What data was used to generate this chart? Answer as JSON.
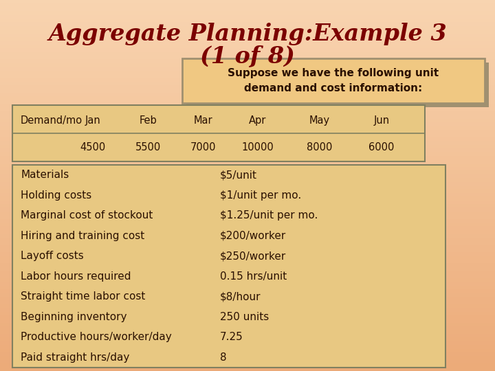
{
  "title_line1": "Aggregate Planning:Example 3",
  "title_line2": "(1 of 8)",
  "title_color": "#7B0000",
  "bg_color_top": "#F5C8A0",
  "bg_color": "#F0BC90",
  "callout_text": "Suppose we have the following unit\ndemand and cost information:",
  "callout_bg": "#F0C882",
  "callout_border": "#A09070",
  "callout_shadow": "#A09070",
  "table1_headers": [
    "Demand/mo",
    "Jan",
    "Feb",
    "Mar",
    "Apr",
    "May",
    "Jun"
  ],
  "table1_values": [
    "",
    "4500",
    "5500",
    "7000",
    "10000",
    "8000",
    "6000"
  ],
  "table1_bg": "#E8C882",
  "table1_border": "#808060",
  "table2_labels": [
    "Materials",
    "Holding costs",
    "Marginal cost of stockout",
    "Hiring and training cost",
    "Layoff costs",
    "Labor hours required",
    "Straight time labor cost",
    "Beginning inventory",
    "Productive hours/worker/day",
    "Paid straight hrs/day"
  ],
  "table2_values": [
    "$5/unit",
    "$1/unit per mo.",
    "$1.25/unit per mo.",
    "$200/worker",
    "$250/worker",
    "0.15 hrs/unit",
    "$8/hour",
    "250 units",
    "7.25",
    "8"
  ],
  "table2_bg": "#E8C882",
  "table2_border": "#808060",
  "dark_text_color": "#2A1000",
  "title_font_size": 24,
  "callout_font_size": 11,
  "table1_font_size": 10.5,
  "table2_font_size": 11
}
